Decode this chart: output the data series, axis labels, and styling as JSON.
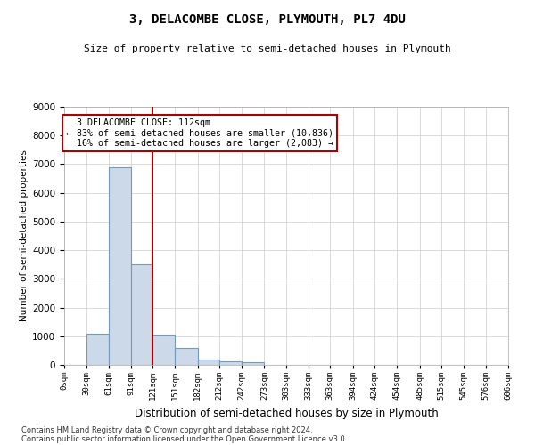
{
  "title": "3, DELACOMBE CLOSE, PLYMOUTH, PL7 4DU",
  "subtitle": "Size of property relative to semi-detached houses in Plymouth",
  "xlabel": "Distribution of semi-detached houses by size in Plymouth",
  "ylabel": "Number of semi-detached properties",
  "property_label": "3 DELACOMBE CLOSE: 112sqm",
  "pct_smaller": 83,
  "count_smaller": 10836,
  "pct_larger": 16,
  "count_larger": 2083,
  "bin_edges": [
    0,
    30,
    61,
    91,
    121,
    151,
    182,
    212,
    242,
    273,
    303,
    333,
    363,
    394,
    424,
    454,
    485,
    515,
    545,
    576,
    606
  ],
  "bar_heights": [
    0,
    1100,
    6900,
    3500,
    1050,
    600,
    200,
    120,
    100,
    0,
    0,
    0,
    0,
    0,
    0,
    0,
    0,
    0,
    0,
    0
  ],
  "bar_color": "#ccd9e8",
  "bar_edge_color": "#7799bb",
  "vline_color": "#aa0000",
  "vline_x": 121,
  "ylim": [
    0,
    9000
  ],
  "yticks": [
    0,
    1000,
    2000,
    3000,
    4000,
    5000,
    6000,
    7000,
    8000,
    9000
  ],
  "footer_line1": "Contains HM Land Registry data © Crown copyright and database right 2024.",
  "footer_line2": "Contains public sector information licensed under the Open Government Licence v3.0.",
  "background_color": "#ffffff",
  "grid_color": "#cccccc"
}
